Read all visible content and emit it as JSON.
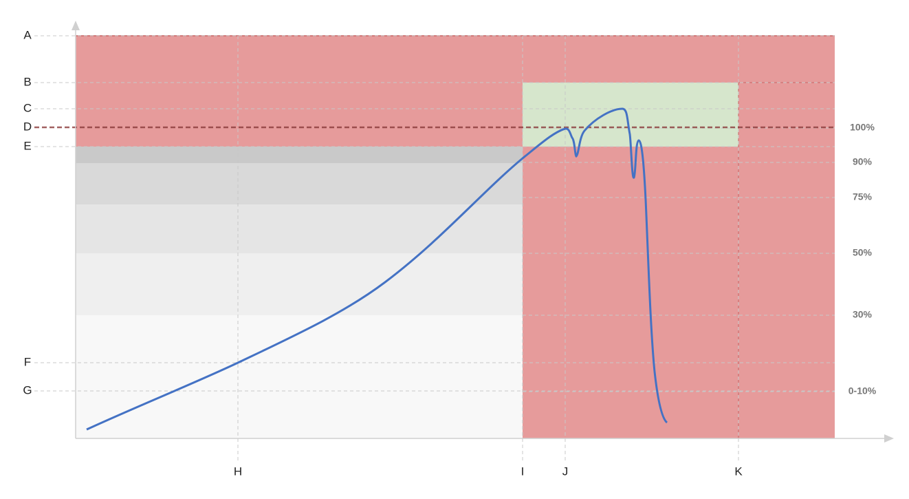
{
  "y_labels": [
    "A",
    "B",
    "C",
    "D",
    "E",
    "F",
    "G"
  ],
  "x_labels": [
    "H",
    "I",
    "J",
    "K"
  ],
  "right_labels": [
    "100%",
    "90%",
    "75%",
    "50%",
    "30%",
    "0-10%"
  ]
}
